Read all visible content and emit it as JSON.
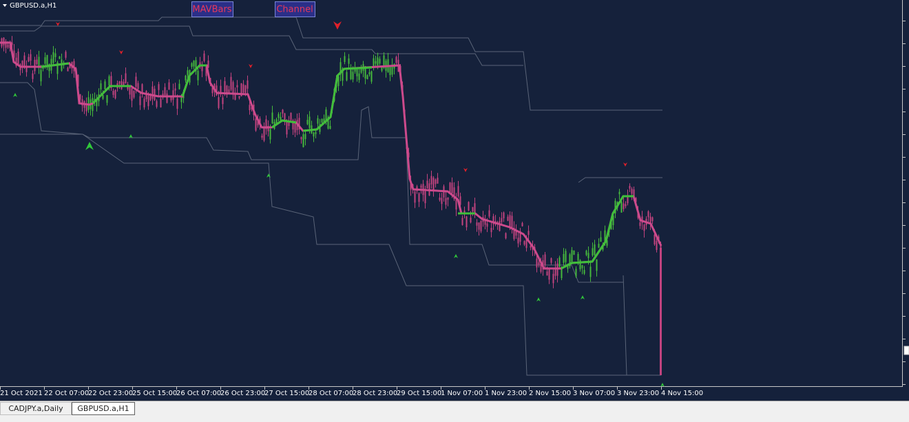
{
  "window": {
    "symbol_label": "GBPUSD.a,H1",
    "buttons": [
      "MAVBars",
      "Channel"
    ],
    "time_axis": [
      "21 Oct 2021",
      "22 Oct 07:00",
      "22 Oct 23:00",
      "25 Oct 15:00",
      "26 Oct 07:00",
      "26 Oct 23:00",
      "27 Oct 15:00",
      "28 Oct 07:00",
      "28 Oct 23:00",
      "29 Oct 15:00",
      "1 Nov 07:00",
      "1 Nov 23:00",
      "2 Nov 15:00",
      "3 Nov 07:00",
      "3 Nov 23:00",
      "4 Nov 15:00"
    ],
    "tabs": [
      "CADJPY.a,Daily",
      "GBPUSD.a,H1"
    ]
  }
}
